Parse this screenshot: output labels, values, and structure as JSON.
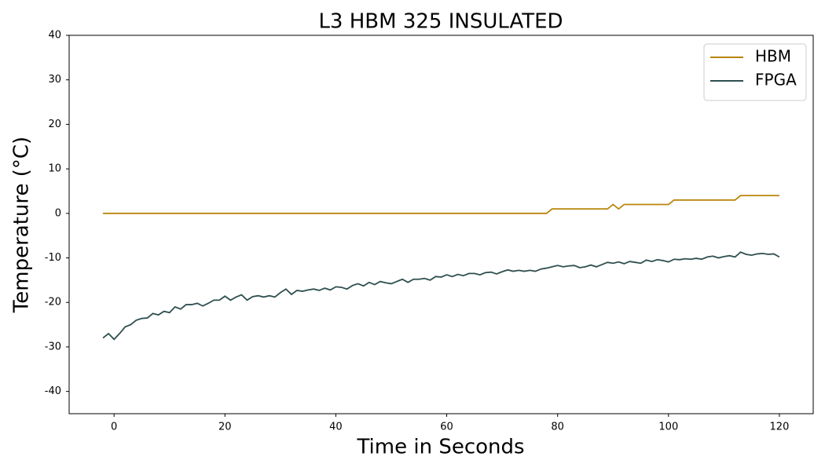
{
  "chart_data": {
    "type": "line",
    "title": "L3 HBM 325 INSULATED",
    "x_label": "Time in Seconds",
    "y_label": "Temperature (°C)",
    "x": [
      -2,
      -1,
      0,
      1,
      2,
      3,
      4,
      5,
      6,
      7,
      8,
      9,
      10,
      11,
      12,
      13,
      14,
      15,
      16,
      17,
      18,
      19,
      20,
      21,
      22,
      23,
      24,
      25,
      26,
      27,
      28,
      29,
      30,
      31,
      32,
      33,
      34,
      35,
      36,
      37,
      38,
      39,
      40,
      41,
      42,
      43,
      44,
      45,
      46,
      47,
      48,
      49,
      50,
      51,
      52,
      53,
      54,
      55,
      56,
      57,
      58,
      59,
      60,
      61,
      62,
      63,
      64,
      65,
      66,
      67,
      68,
      69,
      70,
      71,
      72,
      73,
      74,
      75,
      76,
      77,
      78,
      79,
      80,
      81,
      82,
      83,
      84,
      85,
      86,
      87,
      88,
      89,
      90,
      91,
      92,
      93,
      94,
      95,
      96,
      97,
      98,
      99,
      100,
      101,
      102,
      103,
      104,
      105,
      106,
      107,
      108,
      109,
      110,
      111,
      112,
      113,
      114,
      115,
      116,
      117,
      118,
      119,
      120
    ],
    "series": [
      {
        "name": "HBM",
        "color": "#b8860b",
        "values": [
          0,
          0,
          0,
          0,
          0,
          0,
          0,
          0,
          0,
          0,
          0,
          0,
          0,
          0,
          0,
          0,
          0,
          0,
          0,
          0,
          0,
          0,
          0,
          0,
          0,
          0,
          0,
          0,
          0,
          0,
          0,
          0,
          0,
          0,
          0,
          0,
          0,
          0,
          0,
          0,
          0,
          0,
          0,
          0,
          0,
          0,
          0,
          0,
          0,
          0,
          0,
          0,
          0,
          0,
          0,
          0,
          0,
          0,
          0,
          0,
          0,
          0,
          0,
          0,
          0,
          0,
          0,
          0,
          0,
          0,
          0,
          0,
          0,
          0,
          0,
          0,
          0,
          0,
          0,
          0,
          0,
          1,
          1,
          1,
          1,
          1,
          1,
          1,
          1,
          1,
          1,
          1,
          2,
          1,
          2,
          2,
          2,
          2,
          2,
          2,
          2,
          2,
          2,
          3,
          3,
          3,
          3,
          3,
          3,
          3,
          3,
          3,
          3,
          3,
          3,
          4,
          4,
          4,
          4,
          4,
          4,
          4,
          4
        ]
      },
      {
        "name": "FPGA",
        "color": "#2f4f4f",
        "values": [
          -28,
          -27,
          -28.3,
          -27,
          -25.5,
          -25,
          -24,
          -23.6,
          -23.5,
          -22.5,
          -22.8,
          -22,
          -22.3,
          -21,
          -21.5,
          -20.5,
          -20.5,
          -20.2,
          -20.8,
          -20.2,
          -19.5,
          -19.5,
          -18.6,
          -19.5,
          -18.8,
          -18.3,
          -19.5,
          -18.7,
          -18.5,
          -18.8,
          -18.5,
          -18.8,
          -17.8,
          -17,
          -18.2,
          -17.3,
          -17.5,
          -17.2,
          -17,
          -17.3,
          -16.8,
          -17.2,
          -16.5,
          -16.6,
          -17,
          -16.2,
          -15.8,
          -16.3,
          -15.5,
          -16,
          -15.3,
          -15.6,
          -15.8,
          -15.3,
          -14.8,
          -15.5,
          -14.8,
          -14.8,
          -14.6,
          -15,
          -14.2,
          -14.3,
          -13.8,
          -14.2,
          -13.7,
          -14,
          -13.5,
          -13.5,
          -13.8,
          -13.3,
          -13.2,
          -13.6,
          -13.1,
          -12.7,
          -13,
          -12.8,
          -13,
          -12.8,
          -13,
          -12.5,
          -12.3,
          -12,
          -11.7,
          -12,
          -11.8,
          -11.7,
          -12.2,
          -12,
          -11.6,
          -12,
          -11.5,
          -11,
          -11.2,
          -10.9,
          -11.3,
          -10.8,
          -11,
          -11.2,
          -10.5,
          -10.8,
          -10.4,
          -10.6,
          -10.9,
          -10.3,
          -10.4,
          -10.2,
          -10.3,
          -10.1,
          -10.3,
          -9.8,
          -9.6,
          -10,
          -9.7,
          -9.5,
          -9.8,
          -8.7,
          -9.2,
          -9.4,
          -9.1,
          -9,
          -9.2,
          -9.1,
          -9.8
        ]
      }
    ],
    "xlim": [
      -8.1,
      126.1
    ],
    "xticks": [
      0,
      20,
      40,
      60,
      80,
      100,
      120
    ],
    "ylim": [
      -45,
      40
    ],
    "yticks": [
      -40,
      -30,
      -20,
      -10,
      0,
      10,
      20,
      30,
      40
    ],
    "legend": "upper-right",
    "grid": false
  }
}
